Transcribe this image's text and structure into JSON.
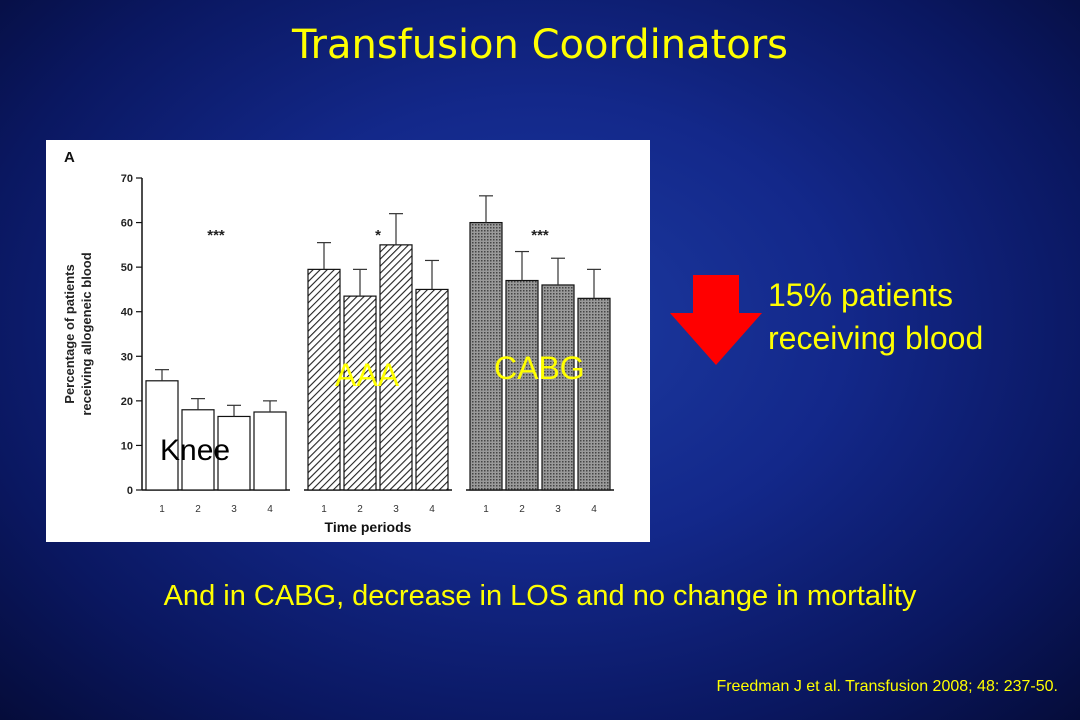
{
  "title": "Transfusion Coordinators",
  "chart_data": {
    "type": "bar",
    "panel_label": "A",
    "ylabel": "Percentage of patients receiving allogeneic blood",
    "xlabel": "Time periods",
    "ylim": [
      0,
      70
    ],
    "yticks": [
      "0",
      "10",
      "20",
      "30",
      "40",
      "50",
      "60",
      "70"
    ],
    "groups": [
      {
        "name": "Knee",
        "categories": [
          "1",
          "2",
          "3",
          "4"
        ],
        "values": [
          24.5,
          18,
          16.5,
          17.5
        ],
        "errors": [
          2.5,
          2.5,
          2.5,
          2.5
        ],
        "significance": "***",
        "fill": "white"
      },
      {
        "name": "AAA",
        "categories": [
          "1",
          "2",
          "3",
          "4"
        ],
        "values": [
          49.5,
          43.5,
          55,
          45
        ],
        "errors": [
          6,
          6,
          7,
          6.5
        ],
        "significance": "*",
        "fill": "hatched"
      },
      {
        "name": "CABG",
        "categories": [
          "1",
          "2",
          "3",
          "4"
        ],
        "values": [
          60,
          47,
          46,
          43
        ],
        "errors": [
          6,
          6.5,
          6,
          6.5
        ],
        "significance": "***",
        "fill": "dotted"
      }
    ]
  },
  "annotations": {
    "knee": "Knee",
    "aaa": "AAA",
    "cabg": "CABG"
  },
  "stat": {
    "line1": "15% patients",
    "line2": "receiving  blood",
    "arrow_color": "#ff0000"
  },
  "conclusion": "And in CABG, decrease in LOS and no change in mortality",
  "citation": "Freedman J et al. Transfusion 2008; 48: 237-50.",
  "colors": {
    "title": "#ffff00",
    "text": "#ffff00",
    "background": "#13288a"
  }
}
